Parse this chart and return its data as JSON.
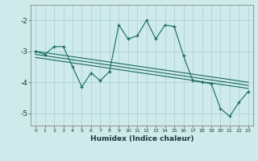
{
  "xlabel": "Humidex (Indice chaleur)",
  "bg_color": "#ceeaea",
  "line_color": "#1a6b5e",
  "grid_color": "#aacfcf",
  "xlim": [
    -0.5,
    23.5
  ],
  "ylim": [
    -5.4,
    -1.5
  ],
  "xticks": [
    0,
    1,
    2,
    3,
    4,
    5,
    6,
    7,
    8,
    9,
    10,
    11,
    12,
    13,
    14,
    15,
    16,
    17,
    18,
    19,
    20,
    21,
    22,
    23
  ],
  "yticks": [
    -5,
    -4,
    -3,
    -2
  ],
  "line1_x": [
    0,
    1,
    2,
    3,
    4,
    5,
    6,
    7,
    8,
    9,
    10,
    11,
    12,
    13,
    14,
    15,
    16,
    17,
    18,
    19,
    20,
    21,
    22,
    23
  ],
  "line1_y": [
    -3.0,
    -3.1,
    -2.85,
    -2.85,
    -3.5,
    -4.15,
    -3.7,
    -3.95,
    -3.65,
    -2.15,
    -2.6,
    -2.5,
    -2.0,
    -2.6,
    -2.15,
    -2.2,
    -3.15,
    -3.95,
    -4.0,
    -4.05,
    -4.85,
    -5.1,
    -4.65,
    -4.3
  ],
  "line2_x": [
    0,
    23
  ],
  "line2_y": [
    -3.0,
    -4.0
  ],
  "line3_x": [
    0,
    23
  ],
  "line3_y": [
    -3.1,
    -4.1
  ],
  "line4_x": [
    0,
    23
  ],
  "line4_y": [
    -3.2,
    -4.2
  ]
}
